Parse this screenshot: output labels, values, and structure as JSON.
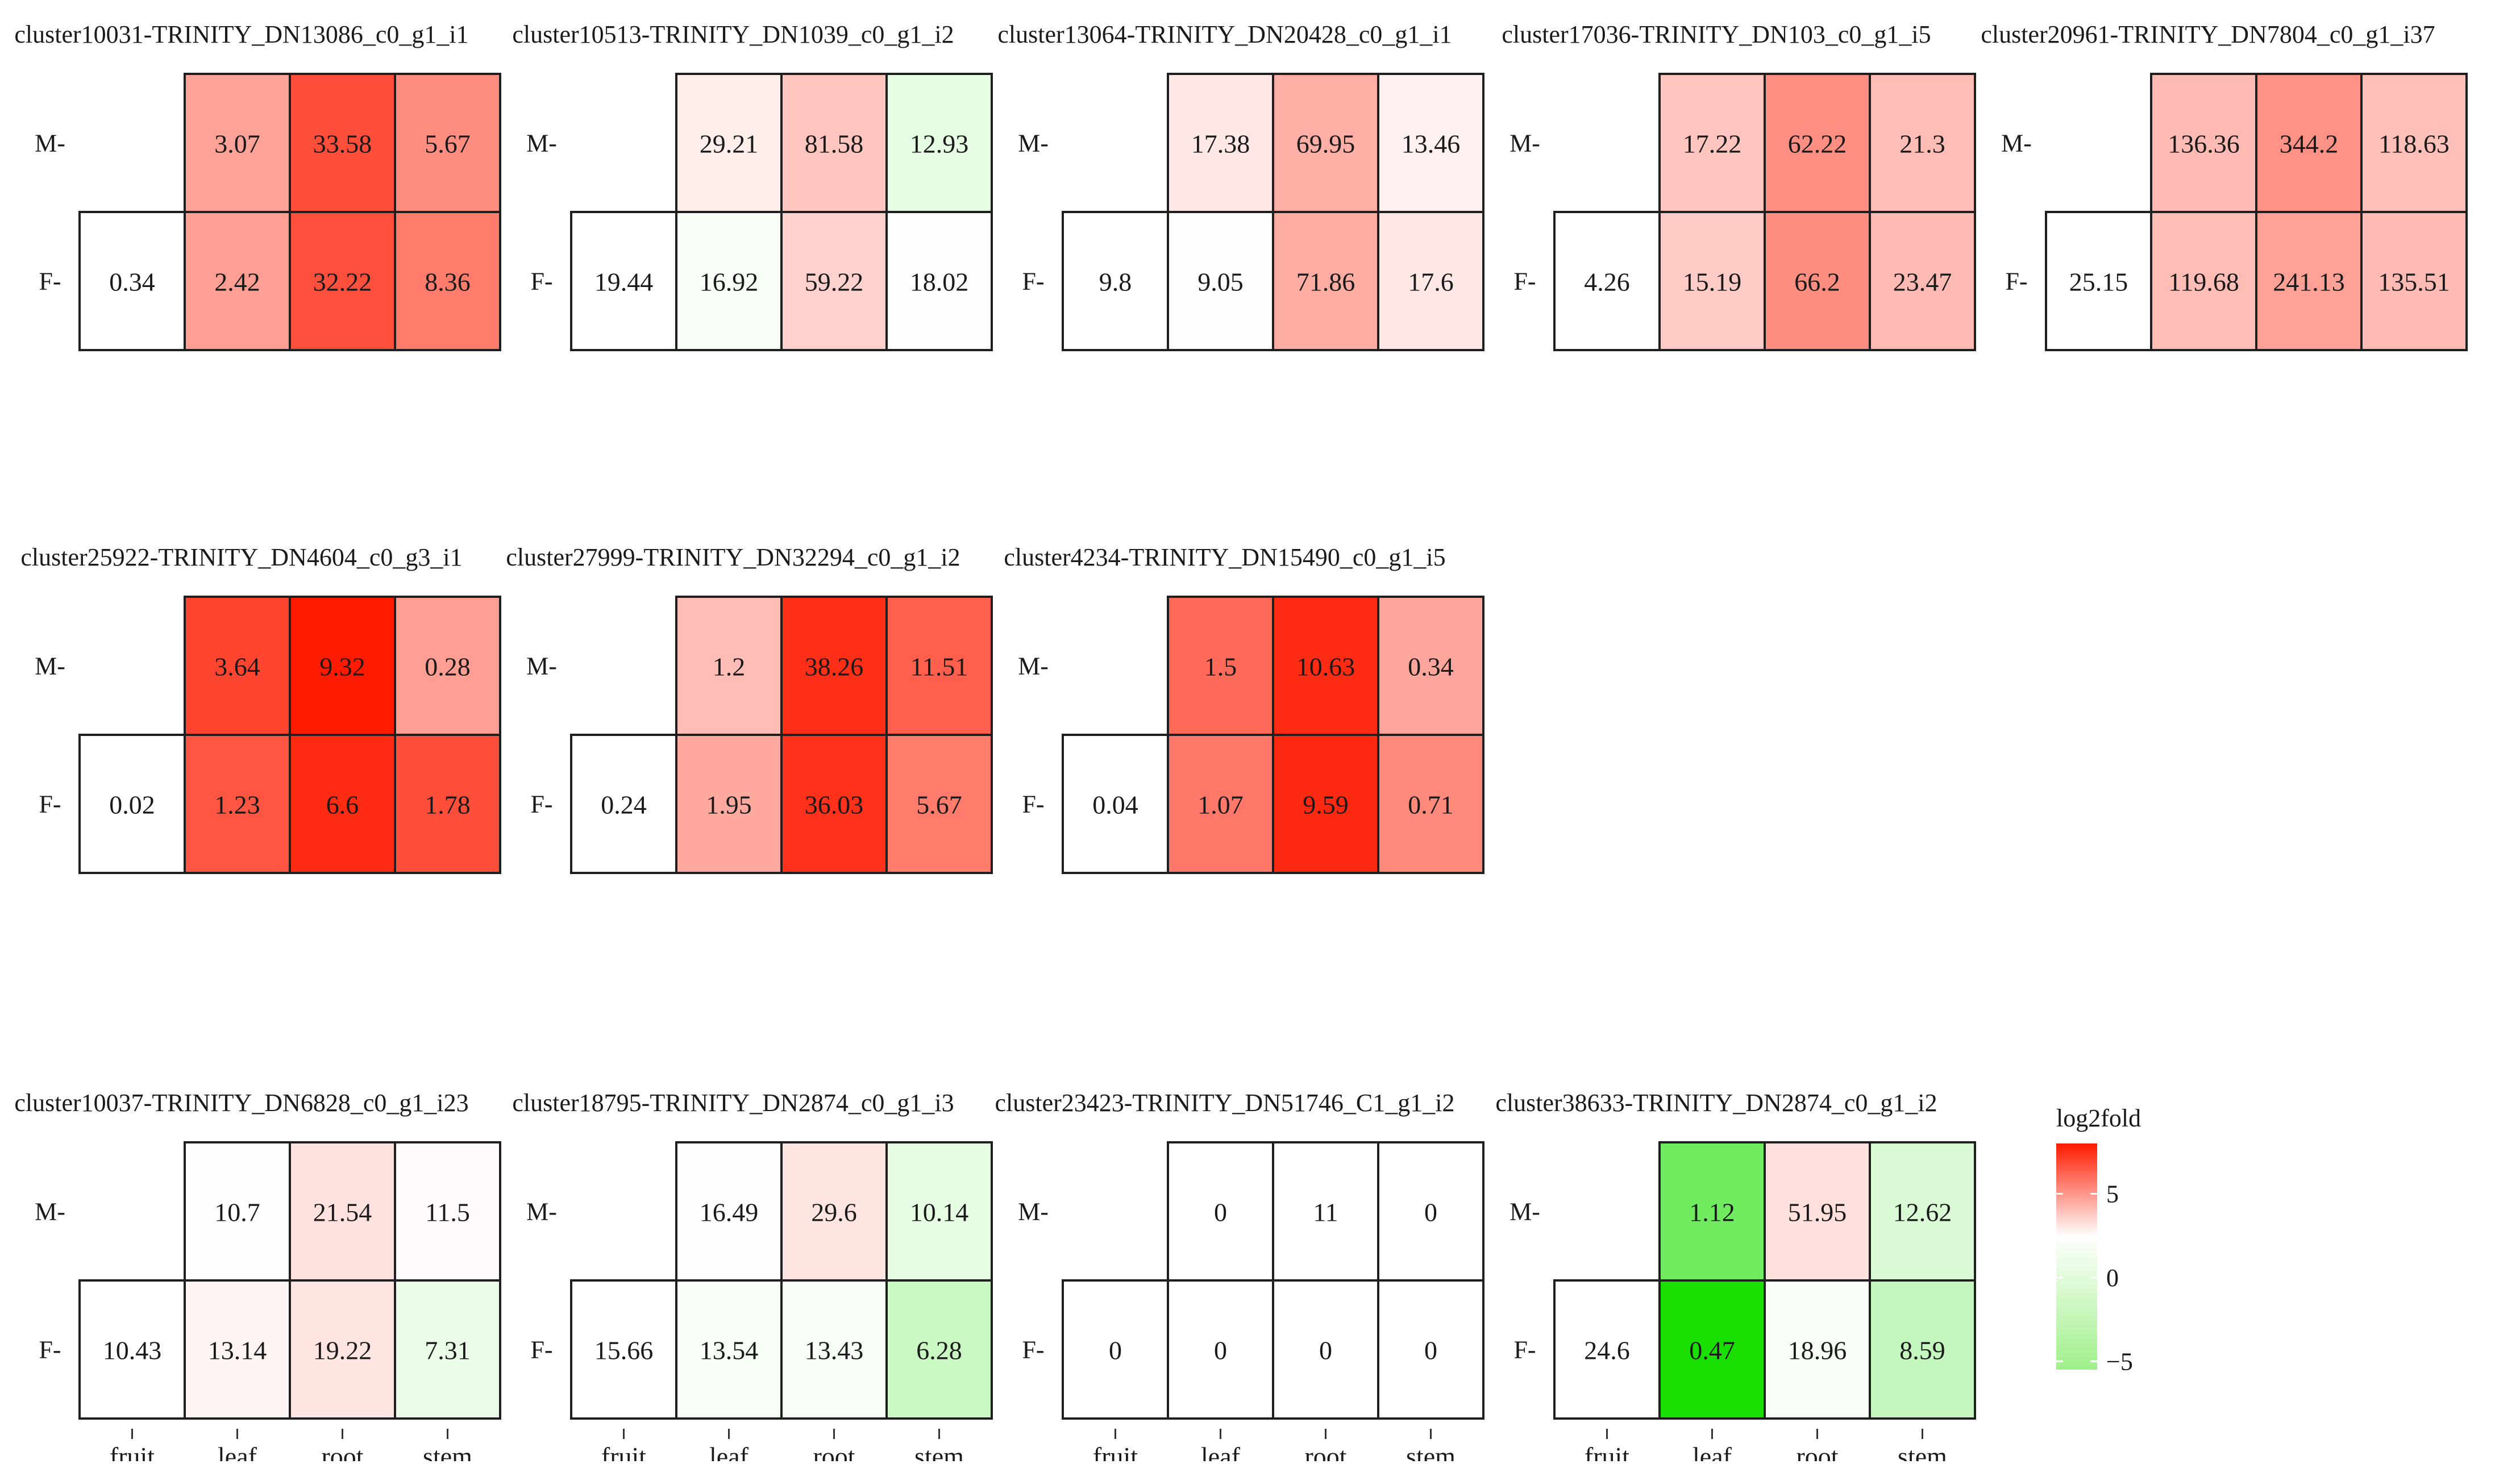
{
  "chart_data": {
    "type": "heatmap",
    "row_labels": [
      "M-",
      "F-"
    ],
    "column_labels": [
      "fruit",
      "leaf",
      "root",
      "stem"
    ],
    "legend": {
      "title": "log2fold",
      "ticks": [
        {
          "value": 5,
          "label": "5"
        },
        {
          "value": 0,
          "label": "0"
        },
        {
          "value": -5,
          "label": "−5"
        }
      ],
      "range": [
        -5.5,
        8
      ],
      "colors": {
        "high": "#ff1a00",
        "mid": "#ffffff",
        "low": "#19e000"
      }
    },
    "panels": [
      {
        "title": "cluster10031-TRINITY_DN13086_c0_g1_i1",
        "M": [
          null,
          "3.07",
          "33.58",
          "5.67"
        ],
        "F": [
          "0.34",
          "2.42",
          "32.22",
          "8.36"
        ],
        "log2fold": {
          "M": [
            null,
            3.2,
            6.2,
            4.0
          ],
          "F": [
            0,
            3.4,
            6.1,
            4.6
          ]
        }
      },
      {
        "title": "cluster10513-TRINITY_DN1039_c0_g1_i2",
        "M": [
          null,
          "29.21",
          "81.58",
          "12.93"
        ],
        "F": [
          "19.44",
          "16.92",
          "59.22",
          "18.02"
        ],
        "log2fold": {
          "M": [
            null,
            0.6,
            2.0,
            -0.6
          ],
          "F": [
            0,
            -0.2,
            1.6,
            -0.1
          ]
        }
      },
      {
        "title": "cluster13064-TRINITY_DN20428_c0_g1_i1",
        "M": [
          null,
          "17.38",
          "69.95",
          "13.46"
        ],
        "F": [
          "9.8",
          "9.05",
          "71.86",
          "17.6"
        ],
        "log2fold": {
          "M": [
            null,
            0.8,
            2.8,
            0.5
          ],
          "F": [
            0,
            -0.1,
            2.9,
            0.8
          ]
        }
      },
      {
        "title": "cluster17036-TRINITY_DN103_c0_g1_i5",
        "M": [
          null,
          "17.22",
          "62.22",
          "21.3"
        ],
        "F": [
          "4.26",
          "15.19",
          "66.2",
          "23.47"
        ],
        "log2fold": {
          "M": [
            null,
            2.0,
            3.9,
            2.3
          ],
          "F": [
            0,
            1.8,
            4.0,
            2.4
          ]
        }
      },
      {
        "title": "cluster20961-TRINITY_DN7804_c0_g1_i37",
        "M": [
          null,
          "136.36",
          "344.2",
          "118.63"
        ],
        "F": [
          "25.15",
          "119.68",
          "241.13",
          "135.51"
        ],
        "log2fold": {
          "M": [
            null,
            2.4,
            3.8,
            2.2
          ],
          "F": [
            0,
            2.3,
            3.3,
            2.4
          ]
        }
      },
      {
        "title": "cluster25922-TRINITY_DN4604_c0_g3_i1",
        "M": [
          null,
          "3.64",
          "9.32",
          "0.28"
        ],
        "F": [
          "0.02",
          "1.23",
          "6.6",
          "1.78"
        ],
        "log2fold": {
          "M": [
            null,
            6.5,
            8.0,
            3.4
          ],
          "F": [
            0,
            5.9,
            7.4,
            6.2
          ]
        }
      },
      {
        "title": "cluster27999-TRINITY_DN32294_c0_g1_i2",
        "M": [
          null,
          "1.2",
          "38.26",
          "11.51"
        ],
        "F": [
          "0.24",
          "1.95",
          "36.03",
          "5.67"
        ],
        "log2fold": {
          "M": [
            null,
            2.3,
            7.3,
            5.6
          ],
          "F": [
            0,
            3.0,
            7.2,
            4.6
          ]
        }
      },
      {
        "title": "cluster4234-TRINITY_DN15490_c0_g1_i5",
        "M": [
          null,
          "1.5",
          "10.63",
          "0.34"
        ],
        "F": [
          "0.04",
          "1.07",
          "9.59",
          "0.71"
        ],
        "log2fold": {
          "M": [
            null,
            5.2,
            7.4,
            3.1
          ],
          "F": [
            0,
            4.7,
            7.5,
            4.1
          ]
        }
      },
      {
        "title": "cluster10037-TRINITY_DN6828_c0_g1_i23",
        "M": [
          null,
          "10.7",
          "21.54",
          "11.5"
        ],
        "F": [
          "10.43",
          "13.14",
          "19.22",
          "7.31"
        ],
        "log2fold": {
          "M": [
            null,
            0.05,
            1.0,
            0.15
          ],
          "F": [
            0,
            0.35,
            0.9,
            -0.5
          ]
        }
      },
      {
        "title": "cluster18795-TRINITY_DN2874_c0_g1_i3",
        "M": [
          null,
          "16.49",
          "29.6",
          "10.14"
        ],
        "F": [
          "15.66",
          "13.54",
          "13.43",
          "6.28"
        ],
        "log2fold": {
          "M": [
            null,
            0.08,
            0.9,
            -0.6
          ],
          "F": [
            0,
            -0.2,
            -0.2,
            -1.3
          ]
        }
      },
      {
        "title": "cluster23423-TRINITY_DN51746_C1_g1_i2",
        "M": [
          null,
          "0",
          "11",
          "0"
        ],
        "F": [
          "0",
          "0",
          "0",
          "0"
        ],
        "log2fold": {
          "M": [
            null,
            0,
            0,
            0
          ],
          "F": [
            0,
            0,
            0,
            0
          ]
        }
      },
      {
        "title": "cluster38633-TRINITY_DN2874_c0_g1_i2",
        "M": [
          null,
          "1.12",
          "51.95",
          "12.62"
        ],
        "F": [
          "24.6",
          "0.47",
          "18.96",
          "8.59"
        ],
        "log2fold": {
          "M": [
            null,
            -3.4,
            1.1,
            -0.9
          ],
          "F": [
            0,
            -5.7,
            -0.2,
            -1.4
          ]
        }
      }
    ]
  }
}
